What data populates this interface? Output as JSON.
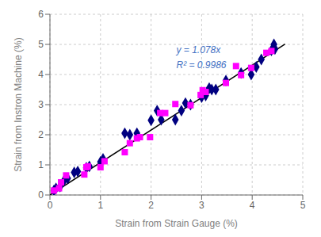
{
  "chart_data": {
    "type": "scatter",
    "title": "",
    "xlabel": "Strain from Strain Gauge (%)",
    "ylabel": "Strain from Instron Machine (%)",
    "xlim": [
      0,
      5
    ],
    "ylim": [
      0,
      6
    ],
    "xticks": [
      0,
      1,
      2,
      3,
      4,
      5
    ],
    "yticks": [
      0,
      1,
      2,
      3,
      4,
      5,
      6
    ],
    "grid": true,
    "series": [
      {
        "type": "line",
        "color": "#000000",
        "line_style": "solid",
        "x": [
          0,
          4.65
        ],
        "values": [
          0,
          5.0127
        ]
      },
      {
        "type": "scatter",
        "color": "#000080",
        "marker": "diamond",
        "x": [
          0.08,
          0.12,
          0.2,
          0.28,
          0.35,
          0.48,
          0.55,
          0.72,
          0.78,
          1.0,
          1.05,
          1.48,
          1.58,
          1.72,
          2.0,
          2.12,
          2.2,
          2.48,
          2.6,
          2.68,
          2.78,
          3.0,
          3.08,
          3.15,
          3.2,
          3.28,
          3.48,
          3.78,
          3.98,
          4.08,
          4.18,
          4.38,
          4.43,
          4.45
        ],
        "values": [
          0.15,
          0.22,
          0.28,
          0.48,
          0.55,
          0.75,
          0.78,
          0.9,
          0.95,
          1.1,
          1.2,
          2.05,
          2.0,
          2.05,
          2.48,
          2.8,
          2.5,
          2.5,
          2.8,
          3.05,
          3.0,
          3.25,
          3.3,
          3.55,
          3.5,
          3.5,
          3.8,
          4.05,
          4.0,
          4.25,
          4.5,
          4.8,
          5.0,
          4.85
        ]
      },
      {
        "type": "scatter",
        "color": "#FF00FF",
        "marker": "square",
        "x": [
          0.08,
          0.18,
          0.22,
          0.32,
          0.68,
          0.72,
          0.75,
          1.0,
          1.08,
          1.48,
          1.58,
          1.72,
          1.78,
          1.98,
          2.18,
          2.28,
          2.48,
          2.78,
          2.98,
          3.02,
          3.08,
          3.48,
          3.68,
          3.78,
          3.98,
          4.28,
          4.38
        ],
        "values": [
          0.15,
          0.22,
          0.42,
          0.65,
          0.68,
          0.92,
          0.95,
          0.92,
          1.12,
          1.42,
          1.72,
          1.88,
          1.92,
          1.92,
          2.72,
          2.72,
          3.02,
          2.98,
          3.32,
          3.48,
          3.42,
          3.72,
          4.28,
          3.98,
          4.22,
          4.72,
          4.78
        ]
      }
    ],
    "annotations": [
      {
        "text": "y = 1.078x",
        "x": 2.5,
        "y": 4.7,
        "color": "#4472C4"
      },
      {
        "text": "R² = 0.9986",
        "x": 2.5,
        "y": 4.22,
        "color": "#4472C4"
      }
    ]
  }
}
